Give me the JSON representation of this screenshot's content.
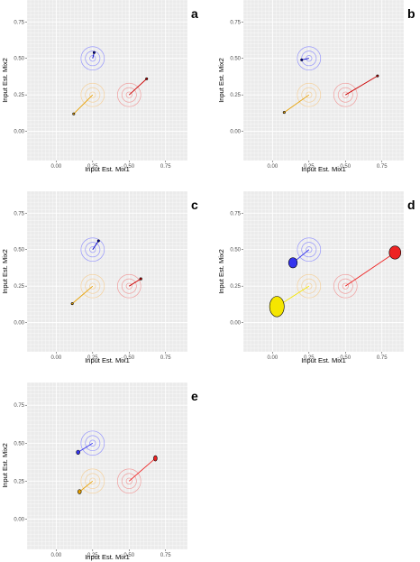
{
  "chart_data": [
    {
      "type": "scatter",
      "panel_label": "a",
      "xlabel": "Input Est. Mix1",
      "ylabel": "Input Est. Mix2",
      "xlim": [
        -0.2,
        0.9
      ],
      "ylim": [
        -0.2,
        0.9
      ],
      "x_ticks": [
        "0.00",
        "0.25",
        "0.50",
        "0.75"
      ],
      "y_ticks": [
        "0.00",
        "0.25",
        "0.50",
        "0.75"
      ],
      "grid": true,
      "true_centers": [
        {
          "x": 0.25,
          "y": 0.5,
          "color": "#8080ff"
        },
        {
          "x": 0.25,
          "y": 0.25,
          "color": "#f5c98a"
        },
        {
          "x": 0.5,
          "y": 0.25,
          "color": "#f08a8a"
        }
      ],
      "estimates": [
        {
          "x": 0.26,
          "y": 0.54,
          "color": "#0000cc",
          "rx": 0.004,
          "ry": 0.004
        },
        {
          "x": 0.12,
          "y": 0.12,
          "color": "#e8a000",
          "rx": 0.004,
          "ry": 0.004
        },
        {
          "x": 0.62,
          "y": 0.36,
          "color": "#cc0000",
          "rx": 0.006,
          "ry": 0.006
        }
      ]
    },
    {
      "type": "scatter",
      "panel_label": "b",
      "xlabel": "Input Est. Mix1",
      "ylabel": "Input Est. Mix2",
      "xlim": [
        -0.2,
        0.9
      ],
      "ylim": [
        -0.2,
        0.9
      ],
      "x_ticks": [
        "0.00",
        "0.25",
        "0.50",
        "0.75"
      ],
      "y_ticks": [
        "0.00",
        "0.25",
        "0.50",
        "0.75"
      ],
      "grid": true,
      "true_centers": [
        {
          "x": 0.25,
          "y": 0.5,
          "color": "#8080ff"
        },
        {
          "x": 0.25,
          "y": 0.25,
          "color": "#f5c98a"
        },
        {
          "x": 0.5,
          "y": 0.25,
          "color": "#f08a8a"
        }
      ],
      "estimates": [
        {
          "x": 0.2,
          "y": 0.49,
          "color": "#0000cc",
          "rx": 0.004,
          "ry": 0.004
        },
        {
          "x": 0.08,
          "y": 0.13,
          "color": "#e8a000",
          "rx": 0.004,
          "ry": 0.004
        },
        {
          "x": 0.72,
          "y": 0.38,
          "color": "#cc0000",
          "rx": 0.004,
          "ry": 0.004
        }
      ]
    },
    {
      "type": "scatter",
      "panel_label": "c",
      "xlabel": "Input Est. Mix1",
      "ylabel": "Input Est. Mix2",
      "xlim": [
        -0.2,
        0.9
      ],
      "ylim": [
        -0.2,
        0.9
      ],
      "x_ticks": [
        "0.00",
        "0.25",
        "0.50",
        "0.75"
      ],
      "y_ticks": [
        "0.00",
        "0.25",
        "0.50",
        "0.75"
      ],
      "grid": true,
      "true_centers": [
        {
          "x": 0.25,
          "y": 0.5,
          "color": "#8080ff"
        },
        {
          "x": 0.25,
          "y": 0.25,
          "color": "#f5c98a"
        },
        {
          "x": 0.5,
          "y": 0.25,
          "color": "#f08a8a"
        }
      ],
      "estimates": [
        {
          "x": 0.29,
          "y": 0.56,
          "color": "#0000cc",
          "rx": 0.006,
          "ry": 0.006
        },
        {
          "x": 0.11,
          "y": 0.13,
          "color": "#e8a000",
          "rx": 0.004,
          "ry": 0.004
        },
        {
          "x": 0.58,
          "y": 0.3,
          "color": "#cc0000",
          "rx": 0.008,
          "ry": 0.008
        }
      ]
    },
    {
      "type": "scatter",
      "panel_label": "d",
      "xlabel": "Input Est. Mix1",
      "ylabel": "Input Est. Mix2",
      "xlim": [
        -0.2,
        0.9
      ],
      "ylim": [
        -0.2,
        0.9
      ],
      "x_ticks": [
        "0.00",
        "0.25",
        "0.50",
        "0.75"
      ],
      "y_ticks": [
        "0.00",
        "0.25",
        "0.50",
        "0.75"
      ],
      "grid": true,
      "true_centers": [
        {
          "x": 0.25,
          "y": 0.5,
          "color": "#8080ff"
        },
        {
          "x": 0.25,
          "y": 0.25,
          "color": "#f5c98a"
        },
        {
          "x": 0.5,
          "y": 0.25,
          "color": "#f08a8a"
        }
      ],
      "estimates": [
        {
          "x": 0.14,
          "y": 0.41,
          "color": "#3333ee",
          "rx": 0.03,
          "ry": 0.035
        },
        {
          "x": 0.03,
          "y": 0.11,
          "color": "#f5e600",
          "rx": 0.05,
          "ry": 0.07
        },
        {
          "x": 0.84,
          "y": 0.48,
          "color": "#ee2222",
          "rx": 0.04,
          "ry": 0.045
        }
      ]
    },
    {
      "type": "scatter",
      "panel_label": "e",
      "xlabel": "Input Est. Mix1",
      "ylabel": "Input Est. Mix2",
      "xlim": [
        -0.2,
        0.9
      ],
      "ylim": [
        -0.2,
        0.9
      ],
      "x_ticks": [
        "0.00",
        "0.25",
        "0.50",
        "0.75"
      ],
      "y_ticks": [
        "0.00",
        "0.25",
        "0.50",
        "0.75"
      ],
      "grid": true,
      "true_centers": [
        {
          "x": 0.25,
          "y": 0.5,
          "color": "#8080ff"
        },
        {
          "x": 0.25,
          "y": 0.25,
          "color": "#f5c98a"
        },
        {
          "x": 0.5,
          "y": 0.25,
          "color": "#f08a8a"
        }
      ],
      "estimates": [
        {
          "x": 0.15,
          "y": 0.44,
          "color": "#3333ee",
          "rx": 0.012,
          "ry": 0.014
        },
        {
          "x": 0.16,
          "y": 0.18,
          "color": "#e8a000",
          "rx": 0.012,
          "ry": 0.014
        },
        {
          "x": 0.68,
          "y": 0.4,
          "color": "#ee2222",
          "rx": 0.012,
          "ry": 0.018
        }
      ]
    }
  ]
}
